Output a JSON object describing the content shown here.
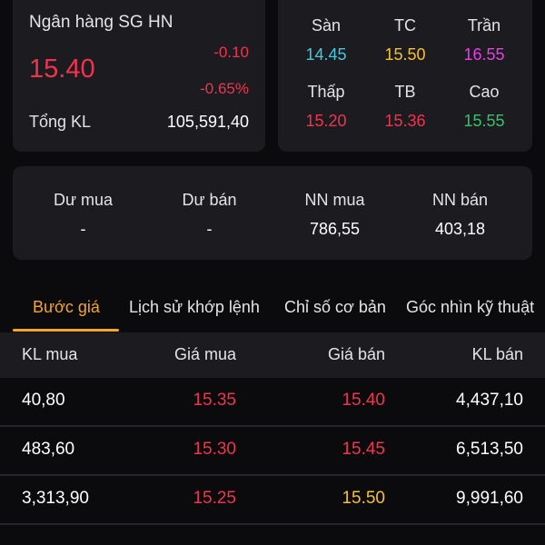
{
  "stock": {
    "name": "Ngân hàng SG HN",
    "price": "15.40",
    "change": "-0.10",
    "change_pct": "-0.65%",
    "total_volume_label": "Tổng KL",
    "total_volume": "105,591,40"
  },
  "price_levels": [
    {
      "label": "Sàn",
      "value": "14.45",
      "color": "#3ecbe0"
    },
    {
      "label": "TC",
      "value": "15.50",
      "color": "#f5c12e"
    },
    {
      "label": "Trần",
      "value": "16.55",
      "color": "#e83ee8"
    },
    {
      "label": "Thấp",
      "value": "15.20",
      "color": "#f0344e"
    },
    {
      "label": "TB",
      "value": "15.36",
      "color": "#f0344e"
    },
    {
      "label": "Cao",
      "value": "15.55",
      "color": "#35c26a"
    }
  ],
  "foreign": [
    {
      "label": "Dư mua",
      "value": "-"
    },
    {
      "label": "Dư bán",
      "value": "-"
    },
    {
      "label": "NN mua",
      "value": "786,55"
    },
    {
      "label": "NN bán",
      "value": "403,18"
    }
  ],
  "tabs": [
    {
      "label": "Bước giá"
    },
    {
      "label": "Lịch sử khớp lệnh"
    },
    {
      "label": "Chỉ số cơ bản"
    },
    {
      "label": "Góc nhìn kỹ thuật"
    }
  ],
  "order_book": {
    "headers": {
      "bid_vol": "KL mua",
      "bid_price": "Giá mua",
      "ask_price": "Giá bán",
      "ask_vol": "KL bán"
    },
    "rows": [
      {
        "bid_vol": "40,80",
        "bid_price": "15.35",
        "ask_price": "15.40",
        "ask_vol": "4,437,10",
        "ask_color": "red"
      },
      {
        "bid_vol": "483,60",
        "bid_price": "15.30",
        "ask_price": "15.45",
        "ask_vol": "6,513,50",
        "ask_color": "red"
      },
      {
        "bid_vol": "3,313,90",
        "bid_price": "15.25",
        "ask_price": "15.50",
        "ask_vol": "9,991,60",
        "ask_color": "yellow"
      }
    ]
  }
}
